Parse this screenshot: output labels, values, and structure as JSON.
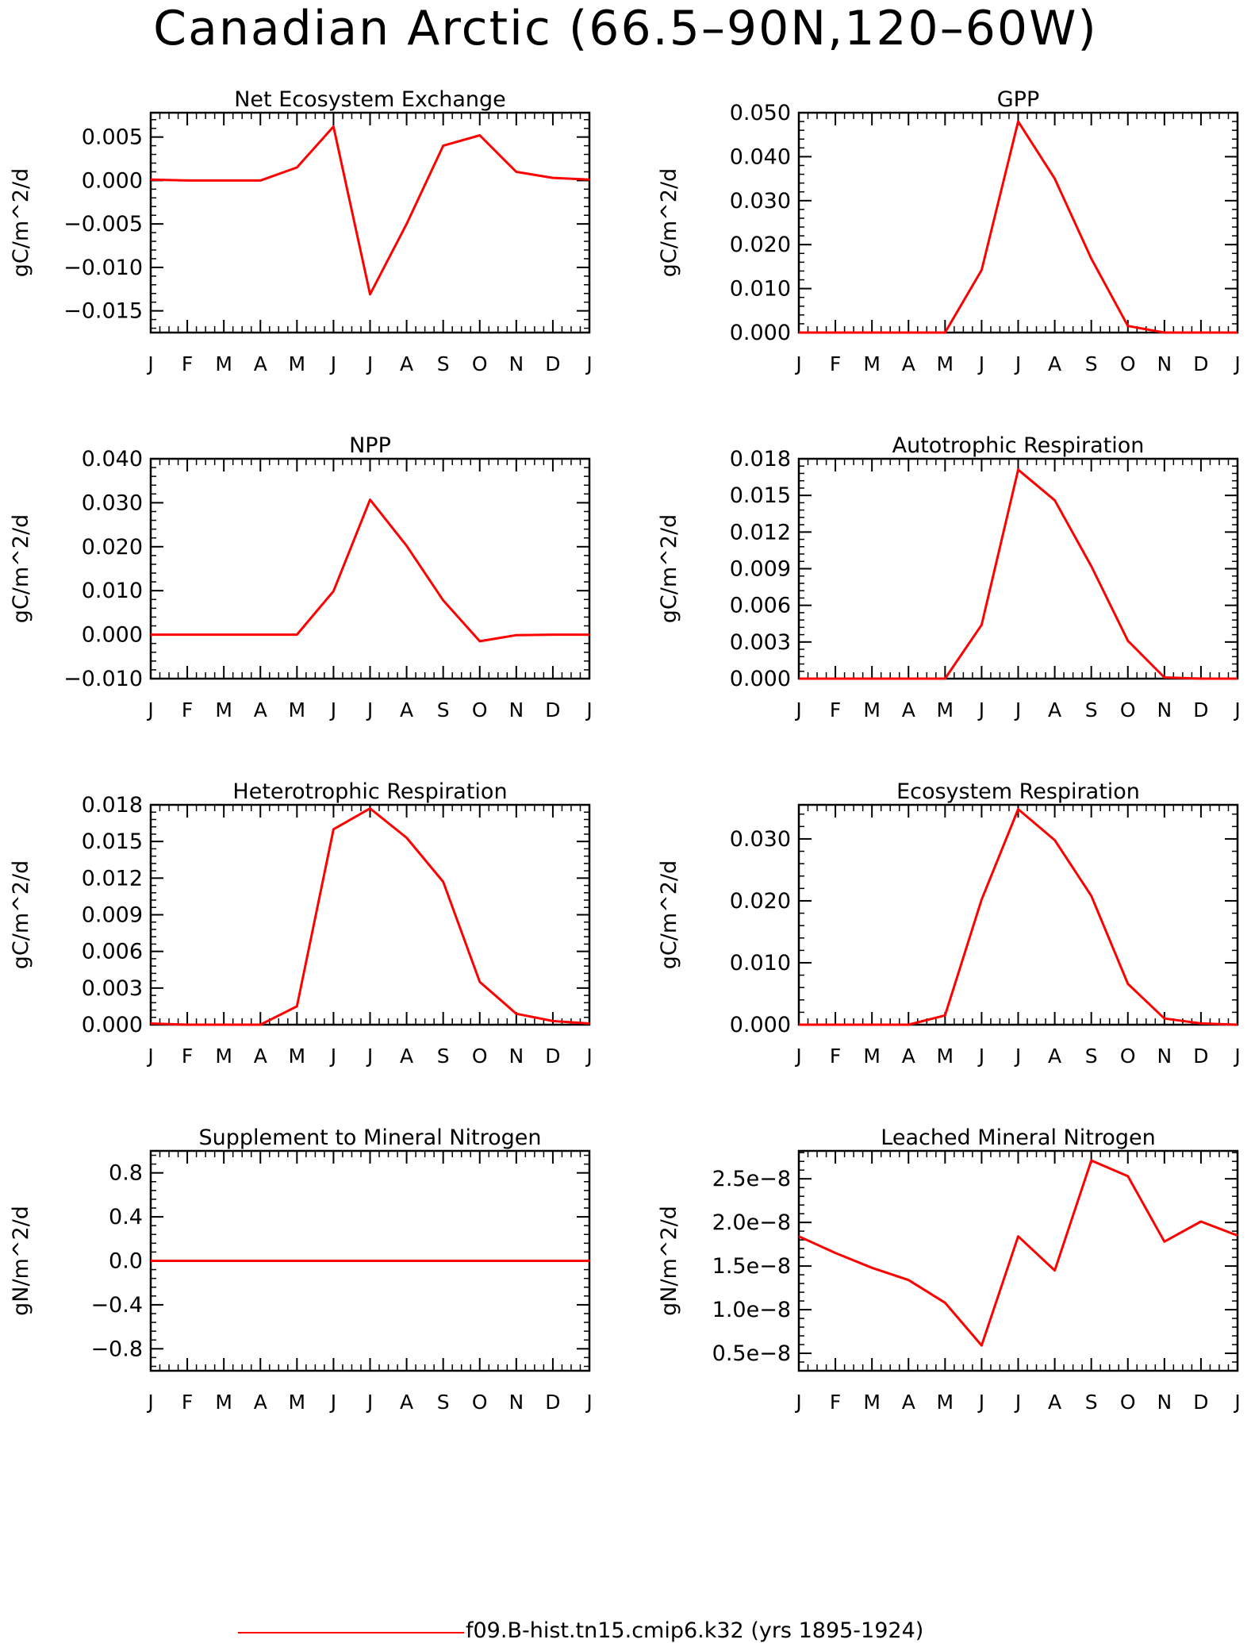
{
  "title": "Canadian Arctic (66.5–90N,120–60W)",
  "legend": {
    "label": "f09.B-hist.tn15.cmip6.k32 (yrs 1895-1924)",
    "color": "#ff0000"
  },
  "chart_data": [
    {
      "type": "line",
      "title": "Net Ecosystem Exchange",
      "ylabel": "gC/m^2/d",
      "x": [
        "J",
        "F",
        "M",
        "A",
        "M",
        "J",
        "J",
        "A",
        "S",
        "O",
        "N",
        "D",
        "J"
      ],
      "ylim": [
        -0.0175,
        0.0078
      ],
      "yticks": [
        -0.015,
        -0.01,
        -0.005,
        0.0,
        0.005
      ],
      "yticklabels": [
        "−0.015",
        "−0.010",
        "−0.005",
        "0.000",
        "0.005"
      ],
      "series": [
        {
          "color": "#ff0000",
          "values": [
            0.0001,
            0.0,
            0.0,
            0.0,
            0.0015,
            0.0062,
            -0.0131,
            -0.005,
            0.004,
            0.0052,
            0.001,
            0.0003,
            0.0001
          ]
        }
      ]
    },
    {
      "type": "line",
      "title": "GPP",
      "ylabel": "gC/m^2/d",
      "x": [
        "J",
        "F",
        "M",
        "A",
        "M",
        "J",
        "J",
        "A",
        "S",
        "O",
        "N",
        "D",
        "J"
      ],
      "ylim": [
        0.0,
        0.05
      ],
      "yticks": [
        0.0,
        0.01,
        0.02,
        0.03,
        0.04,
        0.05
      ],
      "yticklabels": [
        "0.000",
        "0.010",
        "0.020",
        "0.030",
        "0.040",
        "0.050"
      ],
      "series": [
        {
          "color": "#ff0000",
          "values": [
            0.0,
            0.0,
            0.0,
            0.0,
            0.0,
            0.0142,
            0.048,
            0.035,
            0.0168,
            0.0015,
            0.0,
            0.0,
            0.0
          ]
        }
      ]
    },
    {
      "type": "line",
      "title": "NPP",
      "ylabel": "gC/m^2/d",
      "x": [
        "J",
        "F",
        "M",
        "A",
        "M",
        "J",
        "J",
        "A",
        "S",
        "O",
        "N",
        "D",
        "J"
      ],
      "ylim": [
        -0.01,
        0.04
      ],
      "yticks": [
        -0.01,
        0.0,
        0.01,
        0.02,
        0.03,
        0.04
      ],
      "yticklabels": [
        "−0.010",
        "0.000",
        "0.010",
        "0.020",
        "0.030",
        "0.040"
      ],
      "series": [
        {
          "color": "#ff0000",
          "values": [
            0.0,
            0.0,
            0.0,
            0.0,
            0.0,
            0.0099,
            0.0307,
            0.0202,
            0.0078,
            -0.0015,
            -0.0001,
            0.0,
            0.0
          ]
        }
      ]
    },
    {
      "type": "line",
      "title": "Autotrophic Respiration",
      "ylabel": "gC/m^2/d",
      "x": [
        "J",
        "F",
        "M",
        "A",
        "M",
        "J",
        "J",
        "A",
        "S",
        "O",
        "N",
        "D",
        "J"
      ],
      "ylim": [
        0.0,
        0.018
      ],
      "yticks": [
        0.0,
        0.003,
        0.006,
        0.009,
        0.012,
        0.015,
        0.018
      ],
      "yticklabels": [
        "0.000",
        "0.003",
        "0.006",
        "0.009",
        "0.012",
        "0.015",
        "0.018"
      ],
      "series": [
        {
          "color": "#ff0000",
          "values": [
            0.0,
            0.0,
            0.0,
            0.0,
            0.0,
            0.0044,
            0.0171,
            0.0146,
            0.0092,
            0.0031,
            0.0001,
            0.0,
            0.0
          ]
        }
      ]
    },
    {
      "type": "line",
      "title": "Heterotrophic Respiration",
      "ylabel": "gC/m^2/d",
      "x": [
        "J",
        "F",
        "M",
        "A",
        "M",
        "J",
        "J",
        "A",
        "S",
        "O",
        "N",
        "D",
        "J"
      ],
      "ylim": [
        0.0,
        0.018
      ],
      "yticks": [
        0.0,
        0.003,
        0.006,
        0.009,
        0.012,
        0.015,
        0.018
      ],
      "yticklabels": [
        "0.000",
        "0.003",
        "0.006",
        "0.009",
        "0.012",
        "0.015",
        "0.018"
      ],
      "series": [
        {
          "color": "#ff0000",
          "values": [
            0.0001,
            0.0,
            0.0,
            0.0,
            0.0015,
            0.016,
            0.0177,
            0.0153,
            0.0117,
            0.0035,
            0.0009,
            0.0003,
            0.0001
          ]
        }
      ]
    },
    {
      "type": "line",
      "title": "Ecosystem Respiration",
      "ylabel": "gC/m^2/d",
      "x": [
        "J",
        "F",
        "M",
        "A",
        "M",
        "J",
        "J",
        "A",
        "S",
        "O",
        "N",
        "D",
        "J"
      ],
      "ylim": [
        0.0,
        0.0355
      ],
      "yticks": [
        0.0,
        0.01,
        0.02,
        0.03
      ],
      "yticklabels": [
        "0.000",
        "0.010",
        "0.020",
        "0.030"
      ],
      "series": [
        {
          "color": "#ff0000",
          "values": [
            0.0,
            0.0,
            0.0,
            0.0,
            0.0015,
            0.0202,
            0.0348,
            0.0298,
            0.0208,
            0.0066,
            0.001,
            0.0002,
            0.0
          ]
        }
      ]
    },
    {
      "type": "line",
      "title": "Supplement to Mineral Nitrogen",
      "ylabel": "gN/m^2/d",
      "x": [
        "J",
        "F",
        "M",
        "A",
        "M",
        "J",
        "J",
        "A",
        "S",
        "O",
        "N",
        "D",
        "J"
      ],
      "ylim": [
        -1.0,
        1.0
      ],
      "yticks": [
        -0.8,
        -0.4,
        0.0,
        0.4,
        0.8
      ],
      "yticklabels": [
        "−0.8",
        "−0.4",
        "0.0",
        "0.4",
        "0.8"
      ],
      "series": [
        {
          "color": "#ff0000",
          "values": [
            0,
            0,
            0,
            0,
            0,
            0,
            0,
            0,
            0,
            0,
            0,
            0,
            0
          ]
        }
      ]
    },
    {
      "type": "line",
      "title": "Leached Mineral Nitrogen",
      "ylabel": "gN/m^2/d",
      "x": [
        "J",
        "F",
        "M",
        "A",
        "M",
        "J",
        "J",
        "A",
        "S",
        "O",
        "N",
        "D",
        "J"
      ],
      "ylim": [
        3e-09,
        2.82e-08
      ],
      "yticks": [
        5e-09,
        1e-08,
        1.5e-08,
        2e-08,
        2.5e-08
      ],
      "yticklabels": [
        "0.5e−8",
        "1.0e−8",
        "1.5e−8",
        "2.0e−8",
        "2.5e−8"
      ],
      "series": [
        {
          "color": "#ff0000",
          "values": [
            1.84e-08,
            1.65e-08,
            1.48e-08,
            1.34e-08,
            1.08e-08,
            5.9e-09,
            1.84e-08,
            1.45e-08,
            2.71e-08,
            2.53e-08,
            1.78e-08,
            2.01e-08,
            1.85e-08
          ]
        }
      ]
    }
  ]
}
